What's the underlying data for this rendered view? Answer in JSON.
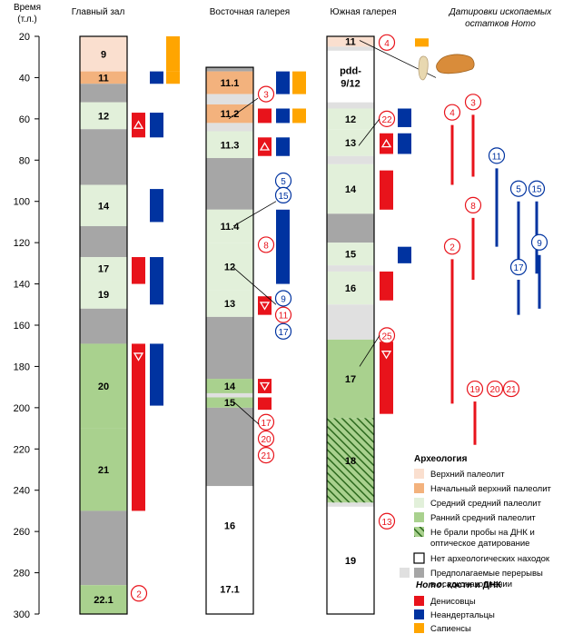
{
  "axis": {
    "title_line1": "Время",
    "title_line2": "(т.л.)",
    "ticks": [
      "20",
      "40",
      "60",
      "80",
      "100",
      "120",
      "140",
      "160",
      "180",
      "200",
      "220",
      "240",
      "260",
      "280",
      "300"
    ]
  },
  "columns": [
    {
      "title": "Главный зал",
      "layers": [
        {
          "label": "9",
          "from": 20,
          "to": 37,
          "color": "#fadfcf"
        },
        {
          "label": "11",
          "from": 37,
          "to": 43,
          "color": "#f3b27d"
        },
        {
          "label": "",
          "from": 43,
          "to": 52,
          "color": "#a6a6a6"
        },
        {
          "label": "12",
          "from": 52,
          "to": 65,
          "color": "#e2f0da"
        },
        {
          "label": "",
          "from": 65,
          "to": 92,
          "color": "#a6a6a6"
        },
        {
          "label": "14",
          "from": 92,
          "to": 112,
          "color": "#e2f0da"
        },
        {
          "label": "",
          "from": 112,
          "to": 127,
          "color": "#a6a6a6"
        },
        {
          "label": "17",
          "from": 127,
          "to": 138,
          "color": "#e2f0da"
        },
        {
          "label": "19",
          "from": 138,
          "to": 152,
          "color": "#e2f0da"
        },
        {
          "label": "",
          "from": 152,
          "to": 169,
          "color": "#a6a6a6"
        },
        {
          "label": "20",
          "from": 169,
          "to": 210,
          "color": "#a9d18e"
        },
        {
          "label": "21",
          "from": 210,
          "to": 250,
          "color": "#a9d18e"
        },
        {
          "label": "",
          "from": 250,
          "to": 286,
          "color": "#a6a6a6"
        },
        {
          "label": "22.1",
          "from": 286,
          "to": 300,
          "color": "#a9d18e"
        }
      ],
      "boxes": [
        {
          "from": 20,
          "to": 37,
          "color": "#ffa500",
          "lane": 2
        },
        {
          "from": 37,
          "to": 43,
          "color": "#ffa500",
          "lane": 2
        },
        {
          "from": 37,
          "to": 43,
          "color": "#0033a0",
          "lane": 1
        },
        {
          "from": 57,
          "to": 69,
          "color": "#e8131b",
          "lane": 0,
          "tri": "up"
        },
        {
          "from": 57,
          "to": 69,
          "color": "#0033a0",
          "lane": 1
        },
        {
          "from": 94,
          "to": 110,
          "color": "#0033a0",
          "lane": 1
        },
        {
          "from": 127,
          "to": 140,
          "color": "#e8131b",
          "lane": 0
        },
        {
          "from": 127,
          "to": 150,
          "color": "#0033a0",
          "lane": 1
        },
        {
          "from": 169,
          "to": 250,
          "color": "#e8131b",
          "lane": 0,
          "tri": "down"
        },
        {
          "from": 169,
          "to": 199,
          "color": "#0033a0",
          "lane": 1
        }
      ],
      "circles": [
        {
          "label": "2",
          "y": 290,
          "color": "#e8131b"
        }
      ]
    },
    {
      "title": "Восточная галерея",
      "layers": [
        {
          "label": "",
          "from": 35,
          "to": 37,
          "color": "#a6a6a6"
        },
        {
          "label": "11.1",
          "from": 37,
          "to": 48,
          "color": "#f3b27d"
        },
        {
          "label": "",
          "from": 48,
          "to": 53,
          "color": "#e0e0e0"
        },
        {
          "label": "11.2",
          "from": 53,
          "to": 62,
          "color": "#f3b27d"
        },
        {
          "label": "",
          "from": 62,
          "to": 66,
          "color": "#e0e0e0"
        },
        {
          "label": "11.3",
          "from": 66,
          "to": 79,
          "color": "#e2f0da"
        },
        {
          "label": "",
          "from": 79,
          "to": 104,
          "color": "#a6a6a6"
        },
        {
          "label": "11.4",
          "from": 104,
          "to": 120,
          "color": "#e2f0da"
        },
        {
          "label": "12",
          "from": 120,
          "to": 143,
          "color": "#e2f0da"
        },
        {
          "label": "13",
          "from": 143,
          "to": 156,
          "color": "#e2f0da"
        },
        {
          "label": "",
          "from": 156,
          "to": 186,
          "color": "#a6a6a6"
        },
        {
          "label": "14",
          "from": 186,
          "to": 193,
          "color": "#a9d18e"
        },
        {
          "label": "",
          "from": 193,
          "to": 195,
          "color": "#e0e0e0"
        },
        {
          "label": "15",
          "from": 195,
          "to": 200,
          "color": "#a9d18e"
        },
        {
          "label": "",
          "from": 200,
          "to": 238,
          "color": "#a6a6a6"
        },
        {
          "label": "16",
          "from": 238,
          "to": 276,
          "color": "#ffffff"
        },
        {
          "label": "17.1",
          "from": 276,
          "to": 300,
          "color": "#ffffff"
        }
      ],
      "boxes": [
        {
          "from": 37,
          "to": 48,
          "color": "#0033a0",
          "lane": 1
        },
        {
          "from": 37,
          "to": 48,
          "color": "#ffa500",
          "lane": 2
        },
        {
          "from": 55,
          "to": 62,
          "color": "#e8131b",
          "lane": 0
        },
        {
          "from": 55,
          "to": 62,
          "color": "#0033a0",
          "lane": 1
        },
        {
          "from": 55,
          "to": 62,
          "color": "#ffa500",
          "lane": 2
        },
        {
          "from": 69,
          "to": 78,
          "color": "#e8131b",
          "lane": 0,
          "tri": "up"
        },
        {
          "from": 69,
          "to": 78,
          "color": "#0033a0",
          "lane": 1
        },
        {
          "from": 104,
          "to": 140,
          "color": "#0033a0",
          "lane": 1
        },
        {
          "from": 146,
          "to": 155,
          "color": "#e8131b",
          "lane": 0,
          "tri": "down"
        },
        {
          "from": 186,
          "to": 193,
          "color": "#e8131b",
          "lane": 0,
          "tri": "down"
        },
        {
          "from": 195,
          "to": 201,
          "color": "#e8131b",
          "lane": 0
        }
      ],
      "circles": [
        {
          "label": "3",
          "y": 48,
          "color": "#e8131b"
        },
        {
          "label": "5",
          "y": 90,
          "color": "#0033a0"
        },
        {
          "label": "15",
          "y": 97,
          "color": "#0033a0"
        },
        {
          "label": "8",
          "y": 121,
          "color": "#e8131b"
        },
        {
          "label": "9",
          "y": 147,
          "color": "#0033a0"
        },
        {
          "label": "11",
          "y": 155,
          "color": "#e8131b"
        },
        {
          "label": "17",
          "y": 163,
          "color": "#0033a0"
        },
        {
          "label": "17",
          "y": 207,
          "color": "#e8131b"
        },
        {
          "label": "20",
          "y": 215,
          "color": "#e8131b"
        },
        {
          "label": "21",
          "y": 223,
          "color": "#e8131b"
        }
      ]
    },
    {
      "title": "Южная галерея",
      "layers": [
        {
          "label": "11",
          "from": 20,
          "to": 25,
          "color": "#fadfcf"
        },
        {
          "label": "",
          "from": 25,
          "to": 27,
          "color": "#e0e0e0"
        },
        {
          "label": "pdd-9/12",
          "from": 27,
          "to": 52,
          "color": "#ffffff"
        },
        {
          "label": "",
          "from": 52,
          "to": 55,
          "color": "#e0e0e0"
        },
        {
          "label": "12",
          "from": 55,
          "to": 65,
          "color": "#e2f0da"
        },
        {
          "label": "13",
          "from": 65,
          "to": 78,
          "color": "#e2f0da"
        },
        {
          "label": "",
          "from": 78,
          "to": 82,
          "color": "#e0e0e0"
        },
        {
          "label": "14",
          "from": 82,
          "to": 106,
          "color": "#e2f0da"
        },
        {
          "label": "",
          "from": 106,
          "to": 120,
          "color": "#a6a6a6"
        },
        {
          "label": "15",
          "from": 120,
          "to": 131,
          "color": "#e2f0da"
        },
        {
          "label": "",
          "from": 131,
          "to": 134,
          "color": "#e0e0e0"
        },
        {
          "label": "16",
          "from": 134,
          "to": 150,
          "color": "#e2f0da"
        },
        {
          "label": "",
          "from": 150,
          "to": 167,
          "color": "#e0e0e0"
        },
        {
          "label": "17",
          "from": 167,
          "to": 205,
          "color": "#a9d18e"
        },
        {
          "label": "18",
          "from": 205,
          "to": 246,
          "color": "#a9d18e",
          "hatch": true
        },
        {
          "label": "",
          "from": 246,
          "to": 248,
          "color": "#e0e0e0"
        },
        {
          "label": "19",
          "from": 248,
          "to": 300,
          "color": "#ffffff"
        }
      ],
      "boxes": [
        {
          "from": 21,
          "to": 25,
          "color": "#ffa500",
          "lane": 2
        },
        {
          "from": 55,
          "to": 64,
          "color": "#0033a0",
          "lane": 1
        },
        {
          "from": 67,
          "to": 77,
          "color": "#e8131b",
          "lane": 0,
          "tri": "up"
        },
        {
          "from": 67,
          "to": 77,
          "color": "#0033a0",
          "lane": 1
        },
        {
          "from": 85,
          "to": 104,
          "color": "#e8131b",
          "lane": 0
        },
        {
          "from": 122,
          "to": 130,
          "color": "#0033a0",
          "lane": 1
        },
        {
          "from": 134,
          "to": 148,
          "color": "#e8131b",
          "lane": 0
        },
        {
          "from": 168,
          "to": 203,
          "color": "#e8131b",
          "lane": 0,
          "tri": "down"
        }
      ],
      "circles": [
        {
          "label": "4",
          "y": 23,
          "color": "#e8131b"
        },
        {
          "label": "22",
          "y": 60,
          "color": "#e8131b"
        },
        {
          "label": "25",
          "y": 165,
          "color": "#e8131b"
        },
        {
          "label": "13",
          "y": 255,
          "color": "#e8131b"
        }
      ]
    }
  ],
  "dating_panel": {
    "title_line1": "Датировки ископаемых",
    "title_line2": "остатков",
    "title_italic": "Homo",
    "bars": [
      {
        "label": "4",
        "from": 63,
        "to": 92,
        "color": "#e8131b"
      },
      {
        "label": "3",
        "from": 58,
        "to": 88,
        "color": "#e8131b"
      },
      {
        "label": "11",
        "from": 84,
        "to": 122,
        "color": "#0033a0"
      },
      {
        "label": "8",
        "from": 108,
        "to": 138,
        "color": "#e8131b"
      },
      {
        "label": "5",
        "from": 100,
        "to": 135,
        "color": "#0033a0"
      },
      {
        "label": "15",
        "from": 100,
        "to": 135,
        "color": "#0033a0"
      },
      {
        "label": "2",
        "from": 128,
        "to": 198,
        "color": "#e8131b"
      },
      {
        "label": "9",
        "from": 126,
        "to": 152,
        "color": "#0033a0"
      },
      {
        "label": "17",
        "from": 138,
        "to": 155,
        "color": "#0033a0"
      },
      {
        "label": "19",
        "from": 197,
        "to": 218,
        "color": "#e8131b"
      },
      {
        "label": "20",
        "from": 197,
        "to": 197,
        "color": "#e8131b"
      },
      {
        "label": "21",
        "from": 197,
        "to": 197,
        "color": "#e8131b"
      }
    ]
  },
  "legend": {
    "archaeology_title": "Археология",
    "items": [
      {
        "label": "Верхний палеолит",
        "color": "#fadfcf"
      },
      {
        "label": "Начальный верхний палеолит",
        "color": "#f3b27d"
      },
      {
        "label": "Средний средний палеолит",
        "color": "#e2f0da"
      },
      {
        "label": "Ранний средний палеолит",
        "color": "#a9d18e"
      },
      {
        "label": "Не брали пробы на ДНК и",
        "label2": "оптическое датирование",
        "color": "#a9d18e",
        "hatch": true
      },
      {
        "label": "Нет археологических находок",
        "color": "#ffffff"
      },
      {
        "label": "Предполагаемые перерывы",
        "label2": "в осадконакоплении",
        "color": "#e0e0e0",
        "color2": "#a6a6a6"
      }
    ],
    "homo_title_italic": "Homo",
    "homo_title_rest": ": кости и ДНК",
    "homo_items": [
      {
        "label": "Денисовцы",
        "color": "#e8131b"
      },
      {
        "label": "Неандертальцы",
        "color": "#0033a0"
      },
      {
        "label": "Сапиенсы",
        "color": "#ffa500"
      }
    ]
  }
}
